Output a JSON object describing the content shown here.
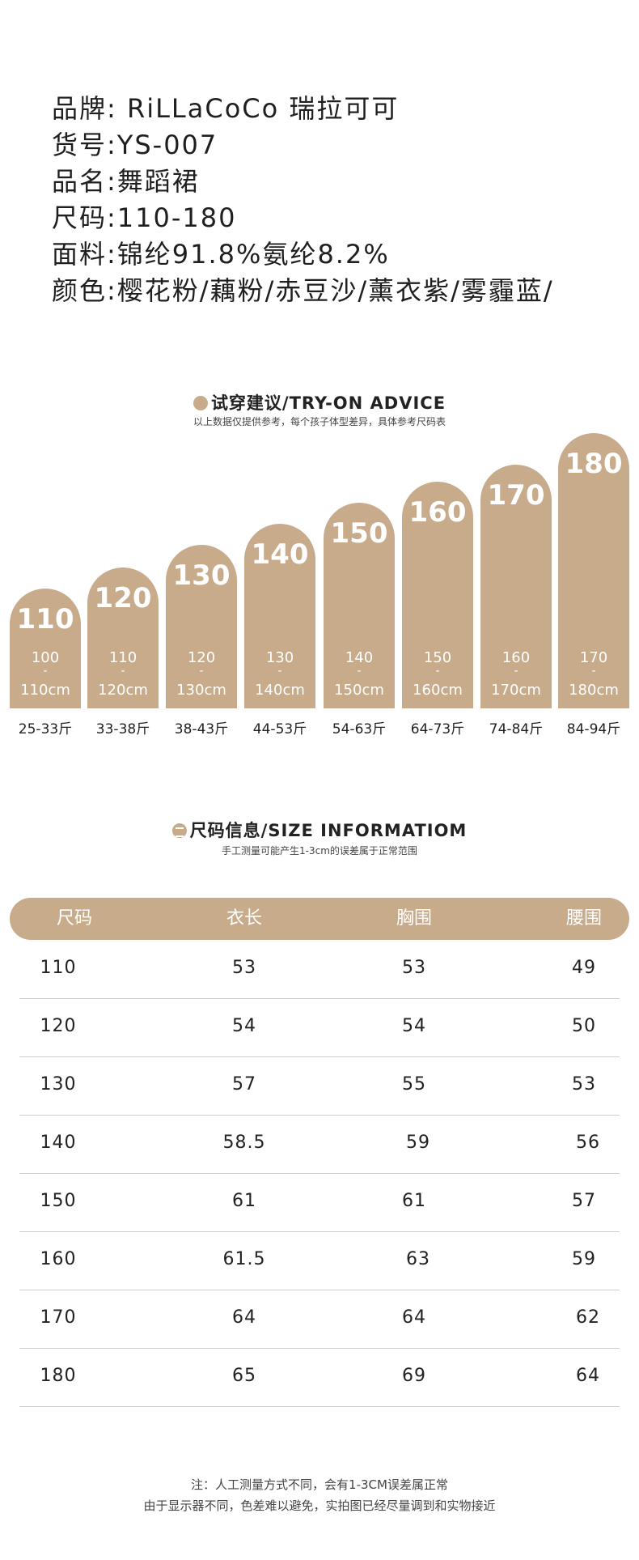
{
  "product": {
    "lines": [
      "品牌: RiLLaCoCo 瑞拉可可",
      "货号:YS-007",
      "品名:舞蹈裙",
      "尺码:110-180",
      "面料:锦纶91.8%氨纶8.2%",
      "颜色:樱花粉/藕粉/赤豆沙/薰衣紫/雾霾蓝/"
    ]
  },
  "try_on": {
    "title": "试穿建议/TRY-ON ADVICE",
    "subtitle": "以上数据仅提供参考，每个孩子体型差异，具体参考尺码表",
    "bars": [
      {
        "size": "110",
        "from": "100",
        "dash": "-",
        "to": "110cm",
        "weight": "25-33斤"
      },
      {
        "size": "120",
        "from": "110",
        "dash": "-",
        "to": "120cm",
        "weight": "33-38斤"
      },
      {
        "size": "130",
        "from": "120",
        "dash": "-",
        "to": "130cm",
        "weight": "38-43斤"
      },
      {
        "size": "140",
        "from": "130",
        "dash": "-",
        "to": "140cm",
        "weight": "44-53斤"
      },
      {
        "size": "150",
        "from": "140",
        "dash": "-",
        "to": "150cm",
        "weight": "54-63斤"
      },
      {
        "size": "160",
        "from": "150",
        "dash": "-",
        "to": "160cm",
        "weight": "64-73斤"
      },
      {
        "size": "170",
        "from": "160",
        "dash": "-",
        "to": "170cm",
        "weight": "74-84斤"
      },
      {
        "size": "180",
        "from": "170",
        "dash": "-",
        "to": "180cm",
        "weight": "84-94斤"
      }
    ]
  },
  "size_info": {
    "title": "尺码信息/SIZE INFORMATIOM",
    "subtitle": "手工测量可能产生1-3cm的误差属于正常范围",
    "headers": [
      "尺码",
      "衣长",
      "胸围",
      "腰围"
    ],
    "rows": [
      [
        "110",
        "53",
        "53",
        "49"
      ],
      [
        "120",
        "54",
        "54",
        "50"
      ],
      [
        "130",
        "57",
        "55",
        "53"
      ],
      [
        "140",
        "58.5",
        "59",
        "56"
      ],
      [
        "150",
        "61",
        "61",
        "57"
      ],
      [
        "160",
        "61.5",
        "63",
        "59"
      ],
      [
        "170",
        "64",
        "64",
        "62"
      ],
      [
        "180",
        "65",
        "69",
        "64"
      ]
    ]
  },
  "notes": [
    "注：人工测量方式不同，会有1-3CM误差属正常",
    "由于显示器不同，色差难以避免，实拍图已经尽量调到和实物接近"
  ],
  "colors": {
    "accent": "#c7ab8b"
  }
}
